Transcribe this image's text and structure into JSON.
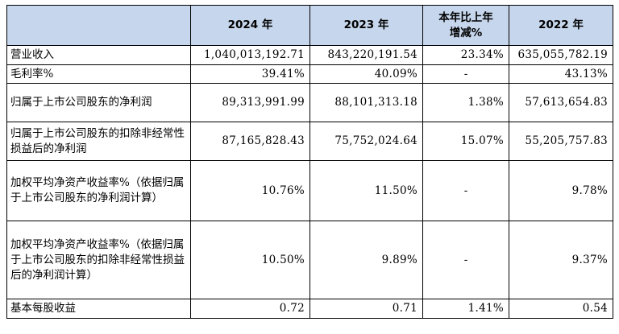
{
  "table": {
    "headers": [
      "",
      "2024 年",
      "2023 年",
      "本年比上年\n增减%",
      "2022 年"
    ],
    "header_line1": "本年比上年",
    "header_line2": "增减%",
    "rows": [
      {
        "label": "营业收入",
        "y2024": "1,040,013,192.71",
        "y2023": "843,220,191.54",
        "change": "23.34%",
        "y2022": "635,055,782.19"
      },
      {
        "label": "毛利率%",
        "y2024": "39.41%",
        "y2023": "40.09%",
        "change": "-",
        "y2022": "43.13%"
      },
      {
        "label": "归属于上市公司股东的净利润",
        "y2024": "89,313,991.99",
        "y2023": "88,101,313.18",
        "change": "1.38%",
        "y2022": "57,613,654.83"
      },
      {
        "label": "归属于上市公司股东的扣除非经常性损益后的净利润",
        "y2024": "87,165,828.43",
        "y2023": "75,752,024.64",
        "change": "15.07%",
        "y2022": "55,205,757.83"
      },
      {
        "label": "加权平均净资产收益率%（依据归属于上市公司股东的净利润计算）",
        "y2024": "10.76%",
        "y2023": "11.50%",
        "change": "-",
        "y2022": "9.78%"
      },
      {
        "label": "加权平均净资产收益率%（依据归属于上市公司股东的扣除非经常性损益后的净利润计算）",
        "y2024": "10.50%",
        "y2023": "9.89%",
        "change": "-",
        "y2022": "9.37%"
      },
      {
        "label": "基本每股收益",
        "y2024": "0.72",
        "y2023": "0.71",
        "change": "1.41%",
        "y2022": "0.54"
      }
    ]
  }
}
